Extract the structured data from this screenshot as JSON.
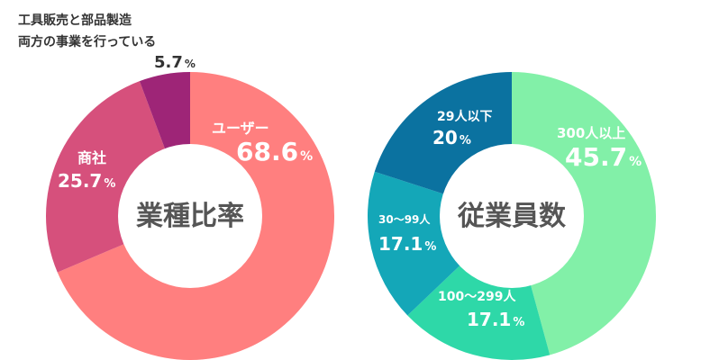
{
  "chart_data": [
    {
      "type": "pie",
      "center_label": "業種比率",
      "slices": [
        {
          "label": "ユーザー",
          "value": 68.6,
          "color": "#FF7F7F"
        },
        {
          "label": "商社",
          "value": 25.7,
          "color": "#D6507C"
        },
        {
          "label": "工具販売と部品製造両方の事業を行っている",
          "value": 5.7,
          "color": "#9E2577"
        }
      ],
      "annotations": {
        "user_label": "ユーザー",
        "user_value": "68.6",
        "trader_label": "商社",
        "trader_value": "25.7",
        "both_line1": "工具販売と部品製造",
        "both_line2": "両方の事業を行っている",
        "both_value": "5.7",
        "percent": "%"
      }
    },
    {
      "type": "pie",
      "center_label": "従業員数",
      "slices": [
        {
          "label": "300人以上",
          "value": 45.7,
          "color": "#82F0A8"
        },
        {
          "label": "100〜299人",
          "value": 17.1,
          "color": "#2ED8A8"
        },
        {
          "label": "30〜99人",
          "value": 17.1,
          "color": "#14A7B8"
        },
        {
          "label": "29人以下",
          "value": 20,
          "color": "#0B72A0"
        }
      ],
      "annotations": {
        "s300_label": "300人以上",
        "s300_value": "45.7",
        "s100_label": "100〜299人",
        "s100_value": "17.1",
        "s30_label": "30〜99人",
        "s30_value": "17.1",
        "s29_label": "29人以下",
        "s29_value": "20",
        "percent": "%"
      }
    }
  ]
}
